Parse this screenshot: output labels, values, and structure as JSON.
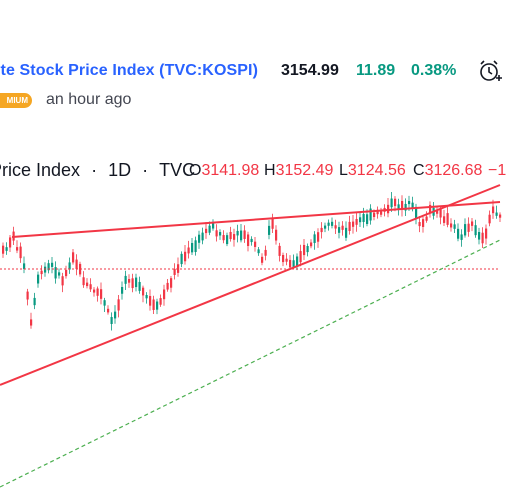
{
  "header": {
    "title": "ite Stock Price Index (TVC:KOSPI)",
    "price": "3154.99",
    "change": "11.89",
    "change_pct": "0.38%",
    "badge": "MIUM",
    "time_ago": "an hour ago"
  },
  "legend": {
    "symbol_fragment": "Price Index",
    "sep1": "·",
    "interval": "1D",
    "sep2": "·",
    "source": "TVC",
    "open_label": "O",
    "open": "3141.98",
    "high_label": "H",
    "high": "3152.49",
    "low_label": "L",
    "low": "3124.56",
    "close_label": "C",
    "close": "3126.68",
    "extra": "−1"
  },
  "colors": {
    "up": "#089981",
    "down": "#f23645",
    "trend_line": "#f23645",
    "dashed_line": "#4caf50",
    "link": "#2962ff",
    "badge": "#f5a623"
  },
  "icons": {
    "alarm": "alarm-clock-plus-icon"
  }
}
